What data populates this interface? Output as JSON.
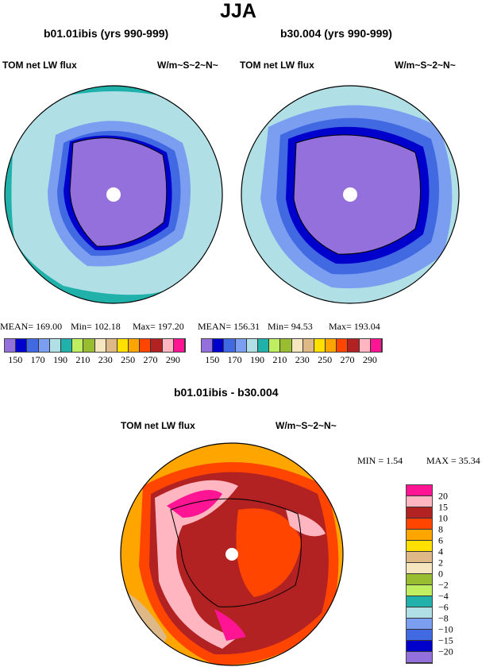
{
  "title": "JJA",
  "panels": [
    {
      "title": "b01.01ibis (yrs 990-999)",
      "left": "TOM net LW flux",
      "right": "W/m~S~2~N~",
      "stats": {
        "mean": "MEAN=  169.00",
        "min": "Min=  102.18",
        "max": "Max=  197.20"
      }
    },
    {
      "title": "b30.004 (yrs 990-999)",
      "left": "TOM net LW flux",
      "right": "W/m~S~2~N~",
      "stats": {
        "mean": "MEAN=  156.31",
        "min": "Min=   94.53",
        "max": "Max=  193.04"
      }
    }
  ],
  "top_colorbar": {
    "colors": [
      "#9370DB",
      "#0000CD",
      "#4169E1",
      "#7B9EF0",
      "#B0E0E6",
      "#20B2AA",
      "#BFEF60",
      "#98BD30",
      "#F5E6C0",
      "#DEB887",
      "#FFE000",
      "#FFA500",
      "#FF4500",
      "#B22222",
      "#FFB6C1",
      "#FF1493"
    ],
    "labels": [
      "150",
      "170",
      "190",
      "210",
      "230",
      "250",
      "270",
      "290"
    ]
  },
  "diff": {
    "title": "b01.01ibis - b30.004",
    "left": "TOM net LW flux",
    "right": "W/m~S~2~N~",
    "min": "MIN =    1.54",
    "max": "MAX =   35.34"
  },
  "diff_colorbar": {
    "colors": [
      "#FF1493",
      "#FFB6C1",
      "#B22222",
      "#FF4500",
      "#FFA500",
      "#FFE000",
      "#DEB887",
      "#F5E6C0",
      "#98BD30",
      "#BFEF60",
      "#20B2AA",
      "#B0E0E6",
      "#7B9EF0",
      "#4169E1",
      "#0000CD",
      "#9370DB"
    ],
    "labels": [
      "20",
      "15",
      "10",
      "8",
      "6",
      "4",
      "2",
      "0",
      "−2",
      "−4",
      "−6",
      "−8",
      "−10",
      "−15",
      "−20"
    ]
  }
}
